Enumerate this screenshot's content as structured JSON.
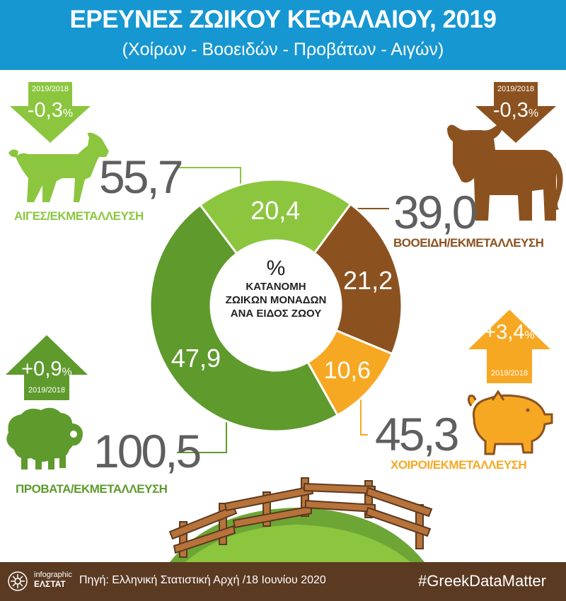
{
  "header": {
    "title": "ΕΡΕΥΝΕΣ ΖΩΙΚΟΥ ΚΕΦΑΛΑΙΟΥ, 2019",
    "subtitle": "(Χοίρων - Βοοειδών - Προβάτων - Αιγών)"
  },
  "center": {
    "symbol": "%",
    "line1": "ΚΑΤΑΝΟΜΗ",
    "line2": "ΖΩΙΚΩΝ ΜΟΝΑΔΩΝ",
    "line3": "ΑΝΑ ΕΙΔΟΣ ΖΩΟΥ"
  },
  "chart_data": {
    "type": "pie",
    "categories": [
      "Αίγες",
      "Βοοειδή",
      "Χοίροι",
      "Πρόβατα"
    ],
    "values": [
      20.4,
      21.2,
      10.6,
      47.9
    ],
    "value_labels": [
      "20,4",
      "21,2",
      "10,6",
      "47,9"
    ],
    "colors": [
      "#8cc63f",
      "#8b5220",
      "#f7a823",
      "#5f9a2d"
    ],
    "title": "",
    "xlabel": "",
    "ylabel": ""
  },
  "animals": {
    "goats": {
      "per_holding": "55,7",
      "label": "ΑΙΓΕΣ/ΕΚΜΕΤΑΛΛΕΥΣΗ",
      "change": "-0,3",
      "change_unit": "%",
      "period": "2019/2018",
      "color": "#8cc63f"
    },
    "cattle": {
      "per_holding": "39,0",
      "label": "ΒΟΟΕΙΔΗ/ΕΚΜΕΤΑΛΛΕΥΣΗ",
      "change": "-0,3",
      "change_unit": "%",
      "period": "2019/2018",
      "color": "#8b5220"
    },
    "sheep": {
      "per_holding": "100,5",
      "label": "ΠΡΟΒΑΤΑ/ΕΚΜΕΤΑΛΛΕΥΣΗ",
      "change": "+0,9",
      "change_unit": "%",
      "period": "2019/2018",
      "color": "#5f9a2d"
    },
    "pigs": {
      "per_holding": "45,3",
      "label": "ΧΟΙΡΟΙ/ΕΚΜΕΤΑΛΛΕΥΣΗ",
      "change": "+3,4",
      "change_unit": "%",
      "period": "2019/2018",
      "color": "#f7a823"
    }
  },
  "footer": {
    "logo_line1": "infographic",
    "logo_line2": "ΕΛΣΤΑΤ",
    "source": "Πηγή: Ελληνική Στατιστική Αρχή /18 Ιουνίου 2020",
    "hashtag": "#GreekDataMatter"
  },
  "icons": [
    "goat-icon",
    "cow-icon",
    "sheep-icon",
    "pig-icon",
    "fence-illustration",
    "elstat-logo-icon"
  ]
}
